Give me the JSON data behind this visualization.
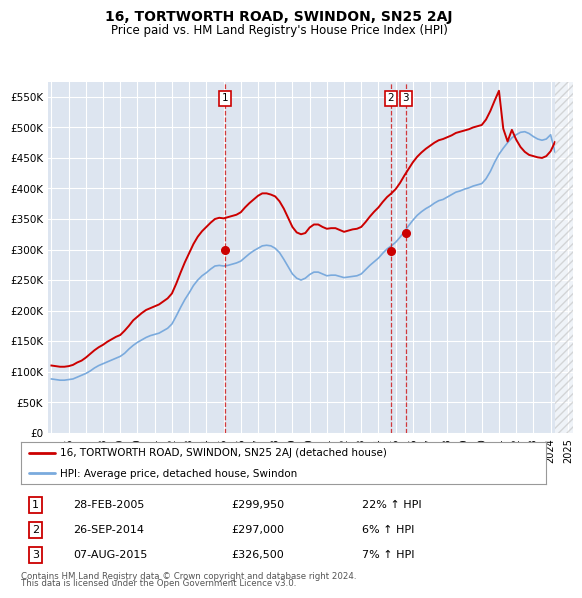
{
  "title": "16, TORTWORTH ROAD, SWINDON, SN25 2AJ",
  "subtitle": "Price paid vs. HM Land Registry's House Price Index (HPI)",
  "legend_line1": "16, TORTWORTH ROAD, SWINDON, SN25 2AJ (detached house)",
  "legend_line2": "HPI: Average price, detached house, Swindon",
  "footer1": "Contains HM Land Registry data © Crown copyright and database right 2024.",
  "footer2": "This data is licensed under the Open Government Licence v3.0.",
  "sales": [
    {
      "label": "1",
      "date": "28-FEB-2005",
      "price": 299950,
      "pct": "22%",
      "dir": "↑"
    },
    {
      "label": "2",
      "date": "26-SEP-2014",
      "price": 297000,
      "pct": "6%",
      "dir": "↑"
    },
    {
      "label": "3",
      "date": "07-AUG-2015",
      "price": 326500,
      "pct": "7%",
      "dir": "↑"
    }
  ],
  "ylim": [
    0,
    575000
  ],
  "yticks": [
    0,
    50000,
    100000,
    150000,
    200000,
    250000,
    300000,
    350000,
    400000,
    450000,
    500000,
    550000
  ],
  "ytick_labels": [
    "£0",
    "£50K",
    "£100K",
    "£150K",
    "£200K",
    "£250K",
    "£300K",
    "£350K",
    "£400K",
    "£450K",
    "£500K",
    "£550K"
  ],
  "bg_color": "#dde5f0",
  "red_color": "#cc0000",
  "blue_color": "#7aaadd",
  "grid_color": "#ffffff",
  "hpi_data": {
    "years": [
      1995.0,
      1995.25,
      1995.5,
      1995.75,
      1996.0,
      1996.25,
      1996.5,
      1996.75,
      1997.0,
      1997.25,
      1997.5,
      1997.75,
      1998.0,
      1998.25,
      1998.5,
      1998.75,
      1999.0,
      1999.25,
      1999.5,
      1999.75,
      2000.0,
      2000.25,
      2000.5,
      2000.75,
      2001.0,
      2001.25,
      2001.5,
      2001.75,
      2002.0,
      2002.25,
      2002.5,
      2002.75,
      2003.0,
      2003.25,
      2003.5,
      2003.75,
      2004.0,
      2004.25,
      2004.5,
      2004.75,
      2005.0,
      2005.25,
      2005.5,
      2005.75,
      2006.0,
      2006.25,
      2006.5,
      2006.75,
      2007.0,
      2007.25,
      2007.5,
      2007.75,
      2008.0,
      2008.25,
      2008.5,
      2008.75,
      2009.0,
      2009.25,
      2009.5,
      2009.75,
      2010.0,
      2010.25,
      2010.5,
      2010.75,
      2011.0,
      2011.25,
      2011.5,
      2011.75,
      2012.0,
      2012.25,
      2012.5,
      2012.75,
      2013.0,
      2013.25,
      2013.5,
      2013.75,
      2014.0,
      2014.25,
      2014.5,
      2014.75,
      2015.0,
      2015.25,
      2015.5,
      2015.75,
      2016.0,
      2016.25,
      2016.5,
      2016.75,
      2017.0,
      2017.25,
      2017.5,
      2017.75,
      2018.0,
      2018.25,
      2018.5,
      2018.75,
      2019.0,
      2019.25,
      2019.5,
      2019.75,
      2020.0,
      2020.25,
      2020.5,
      2020.75,
      2021.0,
      2021.25,
      2021.5,
      2021.75,
      2022.0,
      2022.25,
      2022.5,
      2022.75,
      2023.0,
      2023.25,
      2023.5,
      2023.75,
      2024.0,
      2024.25
    ],
    "values": [
      88000,
      87000,
      86000,
      86000,
      87000,
      88000,
      91000,
      94000,
      97000,
      101000,
      106000,
      110000,
      113000,
      116000,
      119000,
      122000,
      125000,
      130000,
      137000,
      143000,
      148000,
      152000,
      156000,
      159000,
      161000,
      163000,
      167000,
      171000,
      178000,
      191000,
      205000,
      218000,
      229000,
      241000,
      250000,
      257000,
      262000,
      268000,
      273000,
      274000,
      273000,
      274000,
      276000,
      278000,
      281000,
      287000,
      293000,
      298000,
      302000,
      306000,
      307000,
      306000,
      302000,
      295000,
      284000,
      272000,
      260000,
      253000,
      250000,
      253000,
      259000,
      263000,
      263000,
      260000,
      257000,
      258000,
      258000,
      256000,
      254000,
      255000,
      256000,
      257000,
      260000,
      267000,
      274000,
      280000,
      286000,
      294000,
      301000,
      306000,
      312000,
      320000,
      329000,
      339000,
      348000,
      356000,
      362000,
      367000,
      371000,
      376000,
      380000,
      382000,
      386000,
      390000,
      394000,
      396000,
      399000,
      401000,
      404000,
      406000,
      408000,
      416000,
      428000,
      443000,
      456000,
      466000,
      475000,
      483000,
      488000,
      492000,
      493000,
      490000,
      485000,
      481000,
      479000,
      481000,
      488000,
      460000
    ]
  },
  "property_data": {
    "years": [
      1995.0,
      1995.25,
      1995.5,
      1995.75,
      1996.0,
      1996.25,
      1996.5,
      1996.75,
      1997.0,
      1997.25,
      1997.5,
      1997.75,
      1998.0,
      1998.25,
      1998.5,
      1998.75,
      1999.0,
      1999.25,
      1999.5,
      1999.75,
      2000.0,
      2000.25,
      2000.5,
      2000.75,
      2001.0,
      2001.25,
      2001.5,
      2001.75,
      2002.0,
      2002.25,
      2002.5,
      2002.75,
      2003.0,
      2003.25,
      2003.5,
      2003.75,
      2004.0,
      2004.25,
      2004.5,
      2004.75,
      2005.0,
      2005.25,
      2005.5,
      2005.75,
      2006.0,
      2006.25,
      2006.5,
      2006.75,
      2007.0,
      2007.25,
      2007.5,
      2007.75,
      2008.0,
      2008.25,
      2008.5,
      2008.75,
      2009.0,
      2009.25,
      2009.5,
      2009.75,
      2010.0,
      2010.25,
      2010.5,
      2010.75,
      2011.0,
      2011.25,
      2011.5,
      2011.75,
      2012.0,
      2012.25,
      2012.5,
      2012.75,
      2013.0,
      2013.25,
      2013.5,
      2013.75,
      2014.0,
      2014.25,
      2014.5,
      2014.75,
      2015.0,
      2015.25,
      2015.5,
      2015.75,
      2016.0,
      2016.25,
      2016.5,
      2016.75,
      2017.0,
      2017.25,
      2017.5,
      2017.75,
      2018.0,
      2018.25,
      2018.5,
      2018.75,
      2019.0,
      2019.25,
      2019.5,
      2019.75,
      2020.0,
      2020.25,
      2020.5,
      2020.75,
      2021.0,
      2021.25,
      2021.5,
      2021.75,
      2022.0,
      2022.25,
      2022.5,
      2022.75,
      2023.0,
      2023.25,
      2023.5,
      2023.75,
      2024.0,
      2024.25
    ],
    "values": [
      110000,
      109000,
      108000,
      108000,
      109000,
      111000,
      115000,
      118000,
      123000,
      129000,
      135000,
      140000,
      144000,
      149000,
      153000,
      157000,
      160000,
      167000,
      175000,
      184000,
      190000,
      196000,
      201000,
      204000,
      207000,
      210000,
      215000,
      220000,
      228000,
      244000,
      262000,
      279000,
      294000,
      309000,
      321000,
      330000,
      337000,
      344000,
      350000,
      352000,
      351000,
      353000,
      355000,
      357000,
      361000,
      369000,
      376000,
      382000,
      388000,
      392000,
      392000,
      390000,
      387000,
      379000,
      367000,
      352000,
      337000,
      328000,
      325000,
      327000,
      336000,
      341000,
      341000,
      337000,
      334000,
      335000,
      335000,
      332000,
      329000,
      331000,
      333000,
      334000,
      337000,
      345000,
      354000,
      362000,
      369000,
      378000,
      386000,
      392000,
      399000,
      409000,
      421000,
      432000,
      443000,
      452000,
      459000,
      465000,
      470000,
      475000,
      479000,
      481000,
      484000,
      487000,
      491000,
      493000,
      495000,
      497000,
      500000,
      502000,
      504000,
      513000,
      527000,
      544000,
      560000,
      498000,
      477000,
      496000,
      480000,
      468000,
      460000,
      455000,
      453000,
      451000,
      450000,
      453000,
      461000,
      476000
    ]
  },
  "sale_markers": [
    {
      "year": 2005.08,
      "price": 299950,
      "label": "1"
    },
    {
      "year": 2014.73,
      "price": 297000,
      "label": "2"
    },
    {
      "year": 2015.59,
      "price": 326500,
      "label": "3"
    }
  ],
  "hatched_region_start": 2024.25,
  "xmin": 1994.8,
  "xmax": 2025.3
}
